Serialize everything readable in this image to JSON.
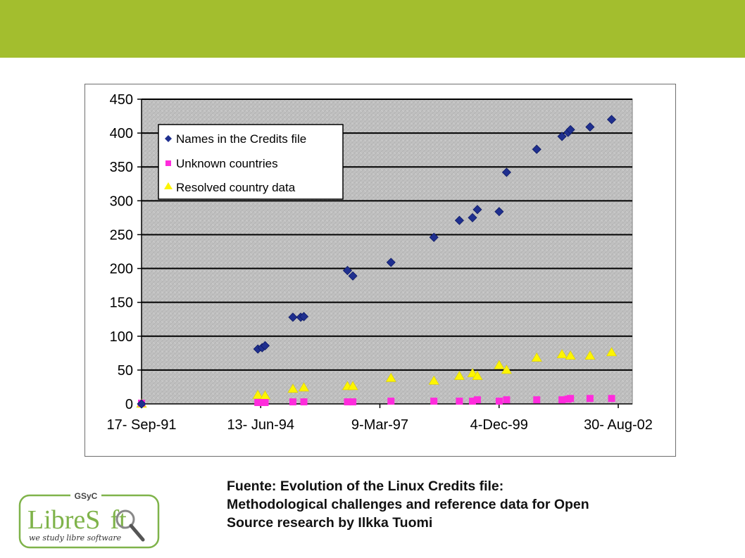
{
  "colors": {
    "banner": "#a3be2e",
    "names_series": "#1f2f8f",
    "unknown_series": "#ff2bdc",
    "resolved_series": "#fdf500",
    "plot_area": "#c0c0c0",
    "logo_green": "#7fb34a"
  },
  "chart_data": {
    "type": "scatter",
    "title": "",
    "xlabel": "",
    "ylabel": "",
    "x_axis_type": "date",
    "xlim": [
      "1991-09-17",
      "2002-08-30"
    ],
    "ylim": [
      0,
      450
    ],
    "y_ticks": [
      0,
      50,
      100,
      150,
      200,
      250,
      300,
      350,
      400,
      450
    ],
    "x_ticks": [
      {
        "date": "1991-09-17",
        "label": "17- Sep-91"
      },
      {
        "date": "1994-06-13",
        "label": "13- Jun-94"
      },
      {
        "date": "1997-03-09",
        "label": "9-Mar-97"
      },
      {
        "date": "1999-12-04",
        "label": "4-Dec-99"
      },
      {
        "date": "2002-08-30",
        "label": "30- Aug-02"
      }
    ],
    "grid": "horizontal",
    "legend_position": "top-left",
    "series": [
      {
        "name": "Names in the Credits file",
        "marker": "diamond",
        "points": [
          {
            "x": "1991-09-17",
            "y": 0
          },
          {
            "x": "1994-05-20",
            "y": 81
          },
          {
            "x": "1994-06-25",
            "y": 83
          },
          {
            "x": "1994-07-20",
            "y": 86
          },
          {
            "x": "1995-03-10",
            "y": 128
          },
          {
            "x": "1995-05-15",
            "y": 128
          },
          {
            "x": "1995-06-10",
            "y": 129
          },
          {
            "x": "1996-06-10",
            "y": 197
          },
          {
            "x": "1996-07-25",
            "y": 189
          },
          {
            "x": "1997-06-10",
            "y": 209
          },
          {
            "x": "1998-06-05",
            "y": 246
          },
          {
            "x": "1999-01-05",
            "y": 271
          },
          {
            "x": "1999-04-25",
            "y": 275
          },
          {
            "x": "1999-06-05",
            "y": 287
          },
          {
            "x": "1999-12-05",
            "y": 284
          },
          {
            "x": "2000-02-05",
            "y": 342
          },
          {
            "x": "2000-10-15",
            "y": 376
          },
          {
            "x": "2001-05-15",
            "y": 395
          },
          {
            "x": "2001-07-05",
            "y": 401
          },
          {
            "x": "2001-07-25",
            "y": 405
          },
          {
            "x": "2002-01-05",
            "y": 409
          },
          {
            "x": "2002-07-05",
            "y": 420
          }
        ]
      },
      {
        "name": "Unknown countries",
        "marker": "square",
        "points": [
          {
            "x": "1991-09-17",
            "y": 0
          },
          {
            "x": "1994-05-20",
            "y": 1
          },
          {
            "x": "1994-06-25",
            "y": 1
          },
          {
            "x": "1994-07-20",
            "y": 1
          },
          {
            "x": "1995-03-10",
            "y": 2
          },
          {
            "x": "1995-06-10",
            "y": 2
          },
          {
            "x": "1996-06-10",
            "y": 2
          },
          {
            "x": "1996-07-25",
            "y": 2
          },
          {
            "x": "1997-06-10",
            "y": 3
          },
          {
            "x": "1998-06-05",
            "y": 3
          },
          {
            "x": "1999-01-05",
            "y": 3
          },
          {
            "x": "1999-04-25",
            "y": 3
          },
          {
            "x": "1999-06-05",
            "y": 5
          },
          {
            "x": "1999-12-05",
            "y": 3
          },
          {
            "x": "2000-02-05",
            "y": 5
          },
          {
            "x": "2000-10-15",
            "y": 5
          },
          {
            "x": "2001-05-15",
            "y": 5
          },
          {
            "x": "2001-07-05",
            "y": 6
          },
          {
            "x": "2001-07-25",
            "y": 7
          },
          {
            "x": "2002-01-05",
            "y": 7
          },
          {
            "x": "2002-07-05",
            "y": 7
          }
        ]
      },
      {
        "name": "Resolved country data",
        "marker": "triangle",
        "points": [
          {
            "x": "1991-09-17",
            "y": 0
          },
          {
            "x": "1994-05-20",
            "y": 13
          },
          {
            "x": "1994-07-20",
            "y": 12
          },
          {
            "x": "1995-03-10",
            "y": 22
          },
          {
            "x": "1995-06-10",
            "y": 24
          },
          {
            "x": "1996-06-10",
            "y": 26
          },
          {
            "x": "1996-07-25",
            "y": 26
          },
          {
            "x": "1997-06-10",
            "y": 38
          },
          {
            "x": "1998-06-05",
            "y": 34
          },
          {
            "x": "1999-01-05",
            "y": 41
          },
          {
            "x": "1999-04-25",
            "y": 45
          },
          {
            "x": "1999-06-05",
            "y": 41
          },
          {
            "x": "1999-12-05",
            "y": 57
          },
          {
            "x": "2000-02-05",
            "y": 50
          },
          {
            "x": "2000-10-15",
            "y": 68
          },
          {
            "x": "2001-05-15",
            "y": 73
          },
          {
            "x": "2001-07-25",
            "y": 71
          },
          {
            "x": "2002-01-05",
            "y": 71
          },
          {
            "x": "2002-07-05",
            "y": 76
          }
        ]
      }
    ]
  },
  "caption": {
    "line1": "Fuente: Evolution of the Linux Credits file:",
    "line2": "Methodological challenges and reference data for Open",
    "line3": "Source research by Ilkka Tuomi"
  },
  "logo": {
    "org": "GSyC",
    "name_part1": "Libre",
    "name_part2": "S",
    "name_part3": "ft",
    "tagline": "we study libre software"
  }
}
